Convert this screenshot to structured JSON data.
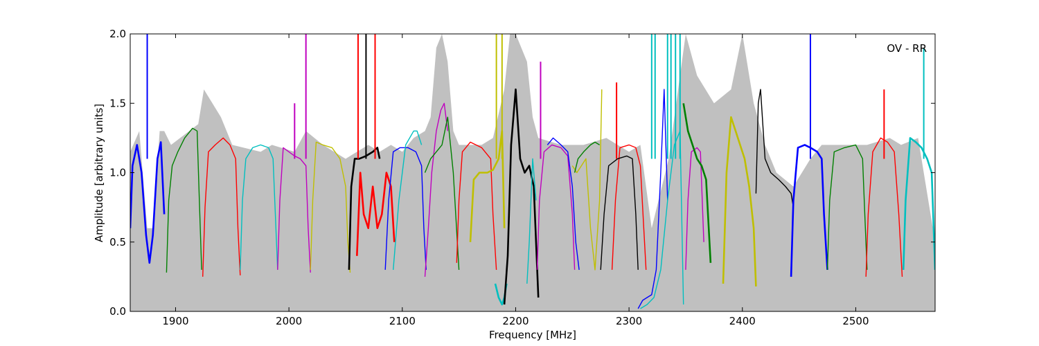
{
  "chart_data": {
    "type": "line",
    "title": "",
    "annotation": "OV - RR",
    "xlabel": "Frequency [MHz]",
    "ylabel": "Amplitude [arbitrary units]",
    "xlim": [
      1860,
      2570
    ],
    "ylim": [
      0.0,
      2.0
    ],
    "xticks": [
      1900,
      2000,
      2100,
      2200,
      2300,
      2400,
      2500
    ],
    "yticks": [
      0.0,
      0.5,
      1.0,
      1.5,
      2.0
    ],
    "ytick_labels": [
      "0.0",
      "0.5",
      "1.0",
      "1.5",
      "2.0"
    ],
    "grid": false,
    "legend": "none",
    "background_envelope": {
      "color": "#c0c0c0",
      "x": [
        1860,
        1868,
        1875,
        1880,
        1886,
        1890,
        1896,
        1920,
        1925,
        1940,
        1950,
        1975,
        1985,
        2005,
        2015,
        2030,
        2050,
        2060,
        2070,
        2080,
        2090,
        2100,
        2110,
        2120,
        2125,
        2130,
        2135,
        2140,
        2145,
        2150,
        2160,
        2170,
        2180,
        2190,
        2195,
        2200,
        2210,
        2215,
        2220,
        2240,
        2260,
        2280,
        2300,
        2310,
        2320,
        2335,
        2350,
        2360,
        2375,
        2390,
        2400,
        2410,
        2420,
        2430,
        2445,
        2460,
        2470,
        2480,
        2500,
        2510,
        2530,
        2540,
        2555,
        2570
      ],
      "y": [
        1.15,
        1.3,
        0.6,
        0.6,
        1.3,
        1.3,
        1.2,
        1.35,
        1.6,
        1.4,
        1.2,
        1.15,
        1.2,
        1.15,
        1.3,
        1.2,
        1.1,
        1.15,
        1.2,
        1.15,
        1.2,
        1.15,
        1.25,
        1.3,
        1.4,
        1.9,
        2.0,
        1.8,
        1.3,
        1.2,
        1.2,
        1.2,
        1.25,
        1.6,
        2.0,
        2.0,
        1.8,
        1.4,
        1.25,
        1.2,
        1.2,
        1.25,
        1.15,
        1.2,
        0.6,
        1.1,
        2.0,
        1.7,
        1.5,
        1.6,
        2.0,
        1.5,
        1.2,
        1.0,
        0.9,
        1.1,
        1.2,
        1.2,
        1.2,
        1.2,
        1.25,
        1.2,
        1.25,
        0.5
      ]
    },
    "series": [
      {
        "color": "#0000ff",
        "thick": true,
        "x": [
          1860,
          1862,
          1866,
          1870,
          1874,
          1877,
          1880,
          1884,
          1887,
          1890
        ],
        "y": [
          0.6,
          1.05,
          1.2,
          1.0,
          0.55,
          0.35,
          0.55,
          1.1,
          1.22,
          0.7
        ],
        "spikes": [
          [
            1875,
            2.0
          ]
        ]
      },
      {
        "color": "#008000",
        "x": [
          1892,
          1894,
          1897,
          1902,
          1908,
          1915,
          1919,
          1921,
          1923
        ],
        "y": [
          0.28,
          0.8,
          1.05,
          1.15,
          1.25,
          1.32,
          1.3,
          0.8,
          0.3
        ]
      },
      {
        "color": "#ff0000",
        "x": [
          1924,
          1926,
          1929,
          1935,
          1942,
          1948,
          1953,
          1955,
          1957
        ],
        "y": [
          0.25,
          0.75,
          1.15,
          1.2,
          1.25,
          1.2,
          1.1,
          0.6,
          0.26
        ]
      },
      {
        "color": "#00bfbf",
        "x": [
          1957,
          1959,
          1962,
          1968,
          1975,
          1982,
          1986,
          1988,
          1990
        ],
        "y": [
          0.3,
          0.8,
          1.1,
          1.18,
          1.2,
          1.18,
          1.1,
          0.7,
          0.3
        ]
      },
      {
        "color": "#bf00bf",
        "x": [
          1990,
          1992,
          1995,
          2000,
          2005,
          2010,
          2015,
          2017,
          2019
        ],
        "y": [
          0.3,
          0.8,
          1.18,
          1.15,
          1.12,
          1.1,
          1.05,
          0.6,
          0.28
        ],
        "spikes": [
          [
            2005,
            1.5
          ],
          [
            2015,
            2.0
          ]
        ]
      },
      {
        "color": "#bfbf00",
        "x": [
          2019,
          2021,
          2024,
          2030,
          2038,
          2045,
          2050,
          2052,
          2054
        ],
        "y": [
          0.3,
          0.8,
          1.22,
          1.2,
          1.18,
          1.1,
          0.9,
          0.5,
          0.28
        ]
      },
      {
        "color": "#000000",
        "thick": true,
        "x": [
          2053,
          2055,
          2058,
          2062,
          2068,
          2074,
          2078,
          2080
        ],
        "y": [
          0.3,
          0.9,
          1.1,
          1.1,
          1.12,
          1.15,
          1.18,
          1.1
        ],
        "spikes": [
          [
            2068,
            2.0
          ]
        ]
      },
      {
        "color": "#ff0000",
        "thick": true,
        "x": [
          2060,
          2063,
          2066,
          2070,
          2074,
          2078,
          2082,
          2086,
          2090,
          2093
        ],
        "y": [
          0.4,
          1.0,
          0.7,
          0.6,
          0.9,
          0.6,
          0.7,
          1.0,
          0.9,
          0.5
        ],
        "spikes": [
          [
            2061,
            2.0
          ],
          [
            2076,
            2.0
          ]
        ]
      },
      {
        "color": "#0000ff",
        "x": [
          2085,
          2088,
          2092,
          2098,
          2105,
          2112,
          2117,
          2119,
          2121
        ],
        "y": [
          0.3,
          0.8,
          1.15,
          1.18,
          1.18,
          1.15,
          1.05,
          0.6,
          0.3
        ]
      },
      {
        "color": "#00bfbf",
        "x": [
          2092,
          2097,
          2103,
          2110,
          2113,
          2117
        ],
        "y": [
          0.3,
          0.8,
          1.2,
          1.3,
          1.3,
          1.2
        ]
      },
      {
        "color": "#bf00bf",
        "x": [
          2120,
          2123,
          2126,
          2130,
          2134,
          2137,
          2140
        ],
        "y": [
          0.25,
          0.6,
          1.0,
          1.3,
          1.45,
          1.5,
          1.3
        ]
      },
      {
        "color": "#008000",
        "x": [
          2120,
          2125,
          2130,
          2135,
          2140,
          2145,
          2150
        ],
        "y": [
          1.0,
          1.1,
          1.15,
          1.2,
          1.4,
          1.0,
          0.3
        ]
      },
      {
        "color": "#ff0000",
        "x": [
          2148,
          2150,
          2153,
          2160,
          2170,
          2178,
          2180,
          2183
        ],
        "y": [
          0.35,
          0.8,
          1.15,
          1.22,
          1.18,
          1.1,
          0.7,
          0.3
        ]
      },
      {
        "color": "#bfbf00",
        "thick": true,
        "x": [
          2160,
          2163,
          2168,
          2175,
          2180,
          2185,
          2188,
          2190
        ],
        "y": [
          0.5,
          0.95,
          1.0,
          1.0,
          1.02,
          1.1,
          1.3,
          0.6
        ],
        "spikes": [
          [
            2183,
            2.0
          ],
          [
            2188,
            2.0
          ]
        ]
      },
      {
        "color": "#00bfbf",
        "thick": true,
        "x": [
          2182,
          2185,
          2188,
          2190,
          2192
        ],
        "y": [
          0.2,
          0.1,
          0.05,
          0.1,
          0.2
        ]
      },
      {
        "color": "#000000",
        "thick": true,
        "x": [
          2190,
          2193,
          2196,
          2200,
          2204,
          2208,
          2212,
          2216,
          2220
        ],
        "y": [
          0.05,
          0.4,
          1.2,
          1.6,
          1.1,
          1.0,
          1.05,
          0.9,
          0.1
        ]
      },
      {
        "color": "#00bfbf",
        "x": [
          2210,
          2212,
          2215,
          2218
        ],
        "y": [
          0.2,
          0.5,
          1.1,
          0.8
        ]
      },
      {
        "color": "#bf00bf",
        "x": [
          2219,
          2221,
          2225,
          2232,
          2240,
          2246,
          2250,
          2252
        ],
        "y": [
          0.3,
          0.8,
          1.15,
          1.2,
          1.18,
          1.12,
          0.7,
          0.3
        ],
        "spikes": [
          [
            2222,
            1.8
          ]
        ]
      },
      {
        "color": "#0000ff",
        "x": [
          2228,
          2233,
          2240,
          2246,
          2250,
          2253,
          2256
        ],
        "y": [
          1.2,
          1.25,
          1.2,
          1.15,
          0.9,
          0.5,
          0.3
        ]
      },
      {
        "color": "#bfbf00",
        "x": [
          2250,
          2254,
          2258,
          2262,
          2266,
          2270,
          2274,
          2276
        ],
        "y": [
          1.05,
          1.0,
          1.05,
          1.1,
          0.6,
          0.3,
          0.8,
          1.6
        ]
      },
      {
        "color": "#008000",
        "x": [
          2252,
          2255,
          2260,
          2266,
          2270,
          2274
        ],
        "y": [
          1.0,
          1.1,
          1.15,
          1.2,
          1.22,
          1.2
        ]
      },
      {
        "color": "#ff0000",
        "x": [
          2285,
          2288,
          2292,
          2300,
          2306,
          2310,
          2313,
          2315
        ],
        "y": [
          0.3,
          0.8,
          1.18,
          1.2,
          1.18,
          1.05,
          0.6,
          0.3
        ],
        "spikes": [
          [
            2289,
            1.65
          ]
        ]
      },
      {
        "color": "#000000",
        "x": [
          2275,
          2278,
          2282,
          2290,
          2298,
          2303,
          2306,
          2308
        ],
        "y": [
          0.3,
          0.7,
          1.05,
          1.1,
          1.12,
          1.1,
          0.7,
          0.3
        ]
      },
      {
        "color": "#0000ff",
        "x": [
          2308,
          2312,
          2316,
          2320,
          2324,
          2328,
          2331,
          2334
        ],
        "y": [
          0.02,
          0.08,
          0.1,
          0.12,
          0.3,
          1.0,
          1.6,
          0.8
        ]
      },
      {
        "color": "#00bfbf",
        "x": [
          2310,
          2316,
          2322,
          2328,
          2334,
          2340,
          2345,
          2348
        ],
        "y": [
          0.02,
          0.05,
          0.1,
          0.3,
          0.8,
          1.2,
          1.3,
          0.05
        ],
        "spikes": [
          [
            2320,
            2.0
          ],
          [
            2323,
            2.0
          ],
          [
            2334,
            2.0
          ],
          [
            2337,
            2.0
          ],
          [
            2341,
            2.0
          ],
          [
            2345,
            2.0
          ]
        ]
      },
      {
        "color": "#bf00bf",
        "x": [
          2350,
          2352,
          2355,
          2360,
          2363,
          2366
        ],
        "y": [
          0.3,
          0.8,
          1.15,
          1.18,
          1.15,
          0.5
        ]
      },
      {
        "color": "#008000",
        "thick": true,
        "x": [
          2348,
          2352,
          2356,
          2360,
          2364,
          2368,
          2372
        ],
        "y": [
          1.5,
          1.3,
          1.2,
          1.1,
          1.05,
          0.95,
          0.35
        ]
      },
      {
        "color": "#bfbf00",
        "thick": true,
        "x": [
          2383,
          2386,
          2390,
          2394,
          2398,
          2402,
          2406,
          2410,
          2412
        ],
        "y": [
          0.2,
          1.0,
          1.4,
          1.3,
          1.2,
          1.1,
          0.9,
          0.6,
          0.18
        ]
      },
      {
        "color": "#000000",
        "x": [
          2412,
          2414,
          2416,
          2420,
          2425,
          2432,
          2438,
          2443,
          2445
        ],
        "y": [
          0.85,
          1.5,
          1.6,
          1.1,
          1.0,
          0.95,
          0.9,
          0.85,
          0.75
        ]
      },
      {
        "color": "#0000ff",
        "thick": true,
        "x": [
          2443,
          2445,
          2449,
          2455,
          2460,
          2466,
          2470,
          2472,
          2475
        ],
        "y": [
          0.25,
          0.8,
          1.18,
          1.2,
          1.18,
          1.15,
          1.1,
          0.7,
          0.3
        ],
        "spikes": [
          [
            2460,
            2.0
          ]
        ]
      },
      {
        "color": "#008000",
        "x": [
          2475,
          2477,
          2481,
          2490,
          2500,
          2506,
          2508,
          2510
        ],
        "y": [
          0.3,
          0.8,
          1.15,
          1.18,
          1.2,
          1.1,
          0.7,
          0.3
        ]
      },
      {
        "color": "#ff0000",
        "x": [
          2509,
          2511,
          2515,
          2522,
          2528,
          2534,
          2538,
          2541
        ],
        "y": [
          0.25,
          0.7,
          1.15,
          1.25,
          1.22,
          1.15,
          0.7,
          0.25
        ],
        "spikes": [
          [
            2525,
            1.6
          ]
        ]
      },
      {
        "color": "#00bfbf",
        "thick": true,
        "x": [
          2542,
          2544,
          2548,
          2553,
          2558,
          2563,
          2567,
          2570
        ],
        "y": [
          0.3,
          0.8,
          1.25,
          1.22,
          1.18,
          1.1,
          1.0,
          0.3
        ],
        "spikes": [
          [
            2560,
            1.9
          ]
        ]
      }
    ]
  }
}
